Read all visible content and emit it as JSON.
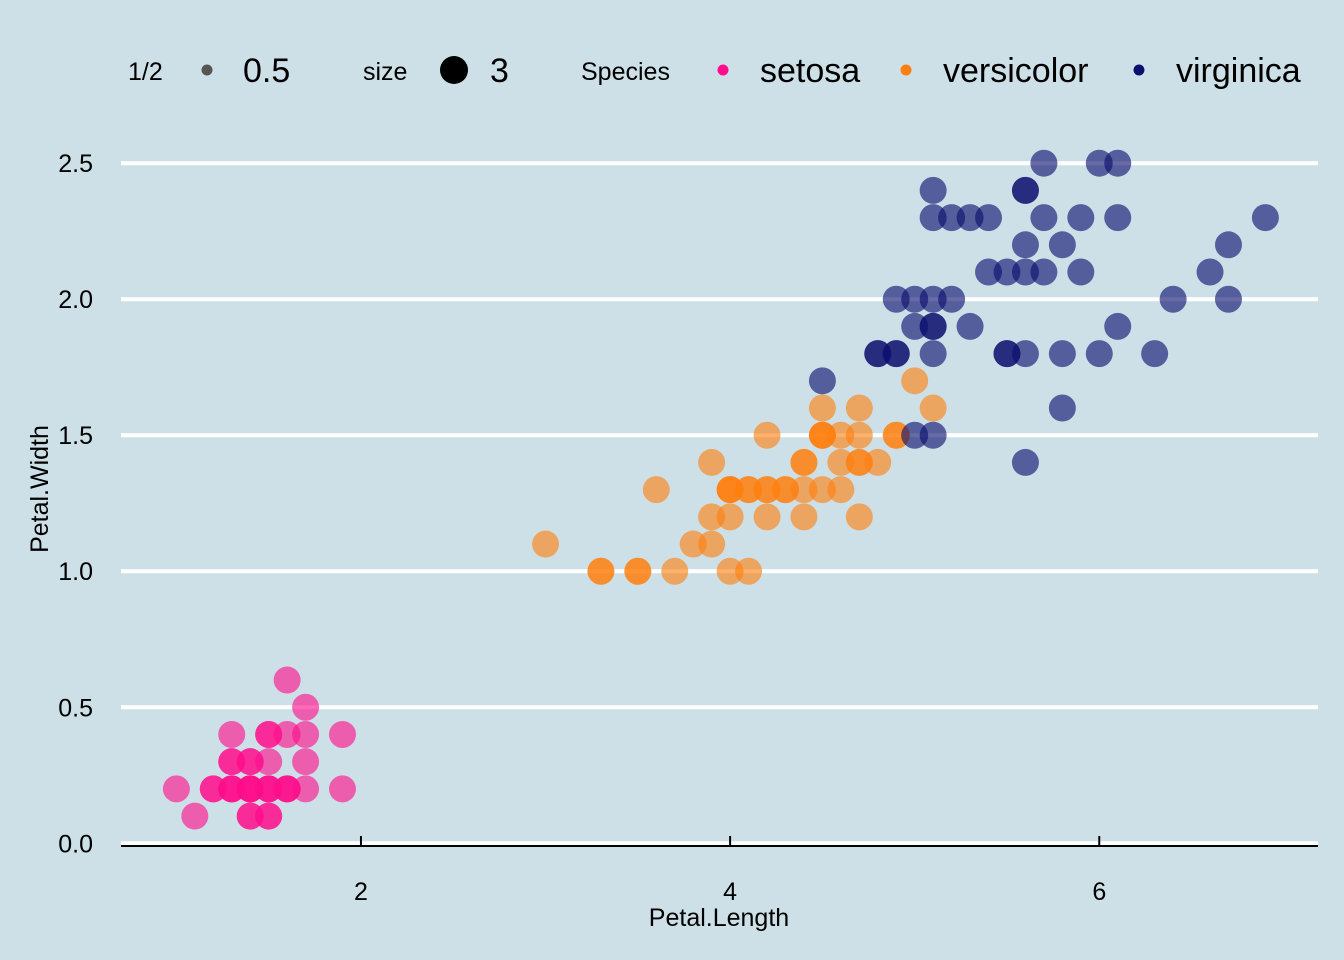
{
  "chart_data": {
    "type": "scatter",
    "title": "",
    "xlabel": "Petal.Length",
    "ylabel": "Petal.Width",
    "xlim": [
      0.7,
      7.185
    ],
    "ylim": [
      -0.01,
      2.6
    ],
    "x_ticks": [
      {
        "value": 2,
        "label": "2"
      },
      {
        "value": 4,
        "label": "4"
      },
      {
        "value": 6,
        "label": "6"
      }
    ],
    "y_ticks": [
      {
        "value": 0,
        "label": "0.0"
      },
      {
        "value": 0.5,
        "label": "0.5"
      },
      {
        "value": 1,
        "label": "1.0"
      },
      {
        "value": 1.5,
        "label": "1.5"
      },
      {
        "value": 2,
        "label": "2.0"
      },
      {
        "value": 2.5,
        "label": "2.5"
      }
    ],
    "grid": "horizontal",
    "background": "#cde0e7",
    "legend_position": "top",
    "legend": {
      "alpha": {
        "title": "1/2",
        "label": "0.5",
        "color": "#555555"
      },
      "size": {
        "title": "size",
        "label": "3",
        "color": "#000000"
      },
      "color": {
        "title": "Species",
        "items": [
          {
            "name": "setosa",
            "color": "#ff0d8a"
          },
          {
            "name": "versicolor",
            "color": "#ff7f0e"
          },
          {
            "name": "virginica",
            "color": "#0b0f6e"
          }
        ]
      }
    },
    "point_opacity": 0.62,
    "series": [
      {
        "name": "setosa",
        "color": "#ff0d8a",
        "points": [
          [
            1.0,
            0.2
          ],
          [
            1.1,
            0.1
          ],
          [
            1.2,
            0.2
          ],
          [
            1.2,
            0.2
          ],
          [
            1.3,
            0.2
          ],
          [
            1.3,
            0.2
          ],
          [
            1.3,
            0.2
          ],
          [
            1.3,
            0.3
          ],
          [
            1.3,
            0.3
          ],
          [
            1.3,
            0.4
          ],
          [
            1.4,
            0.1
          ],
          [
            1.4,
            0.1
          ],
          [
            1.4,
            0.2
          ],
          [
            1.4,
            0.2
          ],
          [
            1.4,
            0.2
          ],
          [
            1.4,
            0.2
          ],
          [
            1.4,
            0.3
          ],
          [
            1.4,
            0.3
          ],
          [
            1.5,
            0.1
          ],
          [
            1.5,
            0.1
          ],
          [
            1.5,
            0.2
          ],
          [
            1.5,
            0.2
          ],
          [
            1.5,
            0.2
          ],
          [
            1.5,
            0.3
          ],
          [
            1.5,
            0.4
          ],
          [
            1.5,
            0.4
          ],
          [
            1.6,
            0.2
          ],
          [
            1.6,
            0.2
          ],
          [
            1.6,
            0.2
          ],
          [
            1.6,
            0.4
          ],
          [
            1.6,
            0.6
          ],
          [
            1.7,
            0.2
          ],
          [
            1.7,
            0.3
          ],
          [
            1.7,
            0.4
          ],
          [
            1.7,
            0.5
          ],
          [
            1.9,
            0.2
          ],
          [
            1.9,
            0.4
          ]
        ]
      },
      {
        "name": "versicolor",
        "color": "#ff7f0e",
        "points": [
          [
            3.0,
            1.1
          ],
          [
            3.3,
            1.0
          ],
          [
            3.3,
            1.0
          ],
          [
            3.5,
            1.0
          ],
          [
            3.5,
            1.0
          ],
          [
            3.6,
            1.3
          ],
          [
            3.7,
            1.0
          ],
          [
            3.8,
            1.1
          ],
          [
            3.9,
            1.1
          ],
          [
            3.9,
            1.2
          ],
          [
            3.9,
            1.4
          ],
          [
            4.0,
            1.0
          ],
          [
            4.0,
            1.2
          ],
          [
            4.0,
            1.3
          ],
          [
            4.0,
            1.3
          ],
          [
            4.0,
            1.3
          ],
          [
            4.1,
            1.0
          ],
          [
            4.1,
            1.3
          ],
          [
            4.1,
            1.3
          ],
          [
            4.2,
            1.2
          ],
          [
            4.2,
            1.3
          ],
          [
            4.2,
            1.3
          ],
          [
            4.2,
            1.5
          ],
          [
            4.3,
            1.3
          ],
          [
            4.3,
            1.3
          ],
          [
            4.4,
            1.2
          ],
          [
            4.4,
            1.3
          ],
          [
            4.4,
            1.4
          ],
          [
            4.4,
            1.4
          ],
          [
            4.5,
            1.3
          ],
          [
            4.5,
            1.5
          ],
          [
            4.5,
            1.5
          ],
          [
            4.5,
            1.5
          ],
          [
            4.5,
            1.6
          ],
          [
            4.6,
            1.3
          ],
          [
            4.6,
            1.4
          ],
          [
            4.6,
            1.5
          ],
          [
            4.7,
            1.2
          ],
          [
            4.7,
            1.4
          ],
          [
            4.7,
            1.4
          ],
          [
            4.7,
            1.5
          ],
          [
            4.7,
            1.6
          ],
          [
            4.8,
            1.4
          ],
          [
            4.9,
            1.5
          ],
          [
            4.9,
            1.5
          ],
          [
            5.0,
            1.7
          ],
          [
            5.1,
            1.6
          ]
        ]
      },
      {
        "name": "virginica",
        "color": "#0b0f6e",
        "points": [
          [
            4.5,
            1.7
          ],
          [
            4.8,
            1.8
          ],
          [
            4.8,
            1.8
          ],
          [
            4.9,
            1.8
          ],
          [
            4.9,
            1.8
          ],
          [
            4.9,
            2.0
          ],
          [
            5.0,
            1.5
          ],
          [
            5.0,
            1.9
          ],
          [
            5.0,
            2.0
          ],
          [
            5.1,
            1.5
          ],
          [
            5.1,
            1.8
          ],
          [
            5.1,
            1.9
          ],
          [
            5.1,
            1.9
          ],
          [
            5.1,
            2.0
          ],
          [
            5.1,
            2.3
          ],
          [
            5.1,
            2.4
          ],
          [
            5.2,
            2.0
          ],
          [
            5.2,
            2.3
          ],
          [
            5.3,
            1.9
          ],
          [
            5.3,
            2.3
          ],
          [
            5.4,
            2.1
          ],
          [
            5.4,
            2.3
          ],
          [
            5.5,
            1.8
          ],
          [
            5.5,
            1.8
          ],
          [
            5.5,
            2.1
          ],
          [
            5.6,
            1.4
          ],
          [
            5.6,
            1.8
          ],
          [
            5.6,
            2.1
          ],
          [
            5.6,
            2.2
          ],
          [
            5.6,
            2.4
          ],
          [
            5.6,
            2.4
          ],
          [
            5.7,
            2.1
          ],
          [
            5.7,
            2.3
          ],
          [
            5.7,
            2.5
          ],
          [
            5.8,
            1.6
          ],
          [
            5.8,
            1.8
          ],
          [
            5.8,
            2.2
          ],
          [
            5.9,
            2.1
          ],
          [
            5.9,
            2.3
          ],
          [
            6.0,
            1.8
          ],
          [
            6.0,
            2.5
          ],
          [
            6.1,
            1.9
          ],
          [
            6.1,
            2.3
          ],
          [
            6.1,
            2.5
          ],
          [
            6.3,
            1.8
          ],
          [
            6.4,
            2.0
          ],
          [
            6.6,
            2.1
          ],
          [
            6.7,
            2.0
          ],
          [
            6.7,
            2.2
          ],
          [
            6.9,
            2.3
          ]
        ]
      }
    ]
  }
}
